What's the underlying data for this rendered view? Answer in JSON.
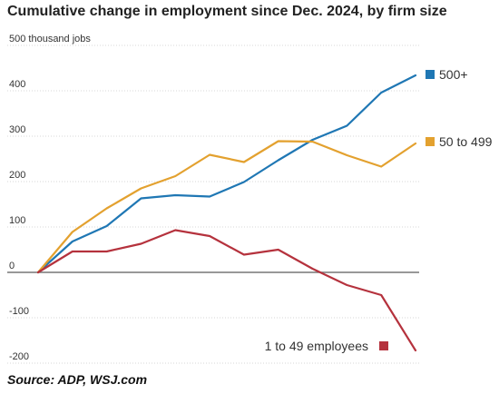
{
  "title": "Cumulative change in employment since Dec. 2024, by firm size",
  "source": "Source:  ADP, WSJ.com",
  "chart_data": {
    "type": "line",
    "ylabel": "500 thousand jobs",
    "ylim": [
      -200,
      500
    ],
    "yticks": [
      500,
      400,
      300,
      200,
      100,
      0,
      -100,
      -200
    ],
    "ytick_labels": [
      "500 thousand jobs",
      "400",
      "300",
      "200",
      "100",
      "0",
      "-100",
      "-200"
    ],
    "x": [
      0,
      1,
      2,
      3,
      4,
      5,
      6,
      7,
      8,
      9,
      10,
      11
    ],
    "grid": true,
    "series": [
      {
        "name": "500+",
        "color": "#1f77b4",
        "values": [
          0,
          68,
          102,
          163,
          170,
          167,
          199,
          247,
          292,
          323,
          396,
          434
        ]
      },
      {
        "name": "50 to 499",
        "color": "#e3a12f",
        "values": [
          0,
          89,
          141,
          185,
          212,
          259,
          243,
          289,
          288,
          258,
          233,
          284
        ]
      },
      {
        "name": "1 to 49 employees",
        "color": "#b5323d",
        "values": [
          0,
          46,
          46,
          63,
          93,
          80,
          39,
          50,
          8,
          -28,
          -50,
          -172
        ]
      }
    ]
  }
}
